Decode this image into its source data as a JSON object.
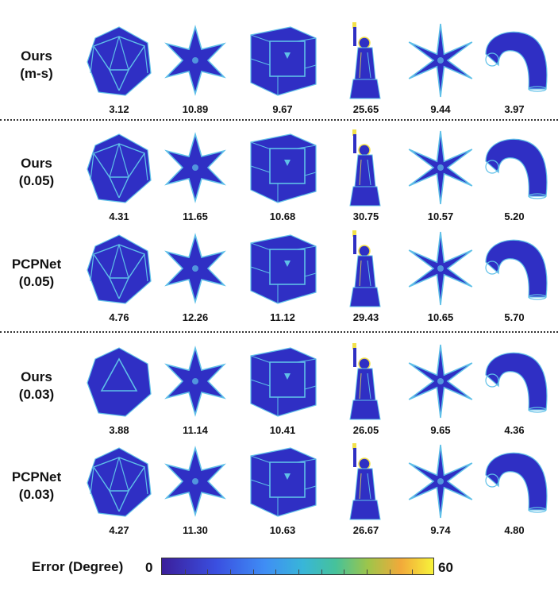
{
  "figure": {
    "rows": [
      {
        "label_lines": [
          "Ours",
          "(m-s)"
        ],
        "values": [
          "3.12",
          "10.89",
          "9.67",
          "25.65",
          "9.44",
          "3.97"
        ]
      },
      {
        "label_lines": [
          "Ours",
          "(0.05)"
        ],
        "values": [
          "4.31",
          "11.65",
          "10.68",
          "30.75",
          "10.57",
          "5.20"
        ]
      },
      {
        "label_lines": [
          "PCPNet",
          "(0.05)"
        ],
        "values": [
          "4.76",
          "12.26",
          "11.12",
          "29.43",
          "10.65",
          "5.70"
        ]
      },
      {
        "label_lines": [
          "Ours",
          "(0.03)"
        ],
        "values": [
          "3.88",
          "11.14",
          "10.41",
          "26.05",
          "9.65",
          "4.36"
        ]
      },
      {
        "label_lines": [
          "PCPNet",
          "(0.03)"
        ],
        "values": [
          "4.27",
          "11.30",
          "10.63",
          "26.67",
          "9.74",
          "4.80"
        ]
      }
    ],
    "shapes": [
      "icosahedron-shape",
      "star6-shape",
      "boxes-shape",
      "liberty-statue-shape",
      "star6-thin-shape",
      "tube-shape"
    ],
    "legend": {
      "title": "Error (Degree)",
      "min": "0",
      "max": "60"
    },
    "colors": {
      "base": "#2f2fc4",
      "edge": "#5fc0e8",
      "hot": "#f2e14a"
    }
  }
}
